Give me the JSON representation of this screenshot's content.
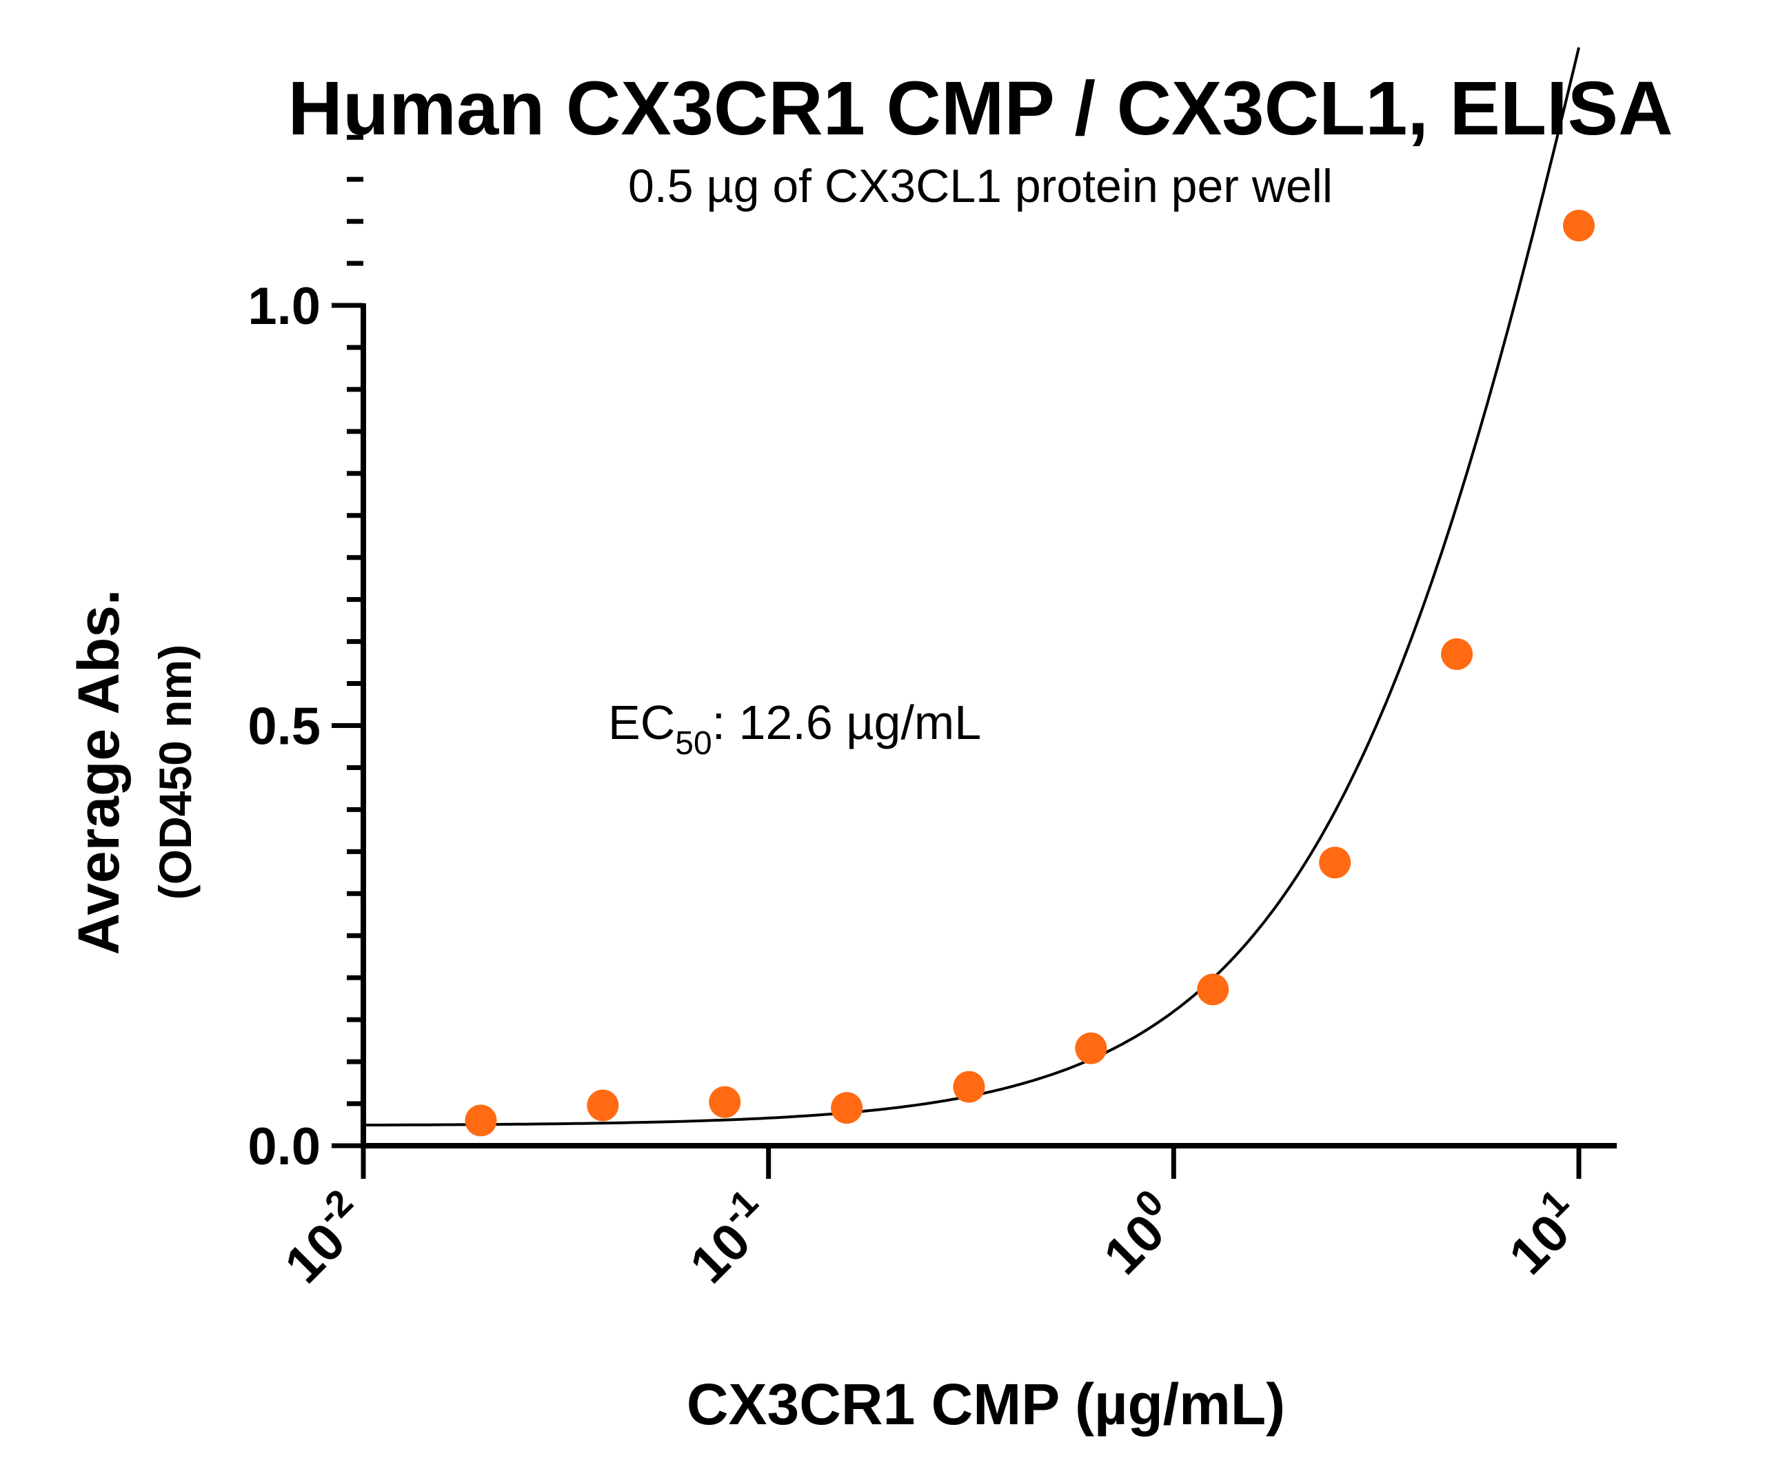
{
  "chart_data": {
    "type": "scatter",
    "title": "Human CX3CR1 CMP / CX3CL1, ELISA",
    "subtitle": "0.5 µg of CX3CL1 protein per well",
    "xlabel": "CX3CR1 CMP (µg/mL)",
    "ylabel": "Average Abs.",
    "ylabel_sub": "(OD450 nm)",
    "x_scale": "log",
    "xlim": [
      0.01,
      10
    ],
    "ylim": [
      0,
      1.2
    ],
    "x_ticks": [
      {
        "value": 0.01,
        "base": "10",
        "exp": "-2"
      },
      {
        "value": 0.1,
        "base": "10",
        "exp": "-1"
      },
      {
        "value": 1,
        "base": "10",
        "exp": "0"
      },
      {
        "value": 10,
        "base": "10",
        "exp": "1"
      }
    ],
    "y_ticks": [
      {
        "value": 0.0,
        "label": "0.0"
      },
      {
        "value": 0.5,
        "label": "0.5"
      },
      {
        "value": 1.0,
        "label": "1.0"
      }
    ],
    "y_minor_step": 0.05,
    "grid": false,
    "annotation": {
      "prefix": "EC",
      "subscript": "50",
      "suffix": ": 12.6 µg/mL"
    },
    "marker_color": "#FF6A13",
    "line_color": "#000000",
    "series": [
      {
        "x": [
          0.0195,
          0.039,
          0.078,
          0.156,
          0.3125,
          0.625,
          1.25,
          2.5,
          5.0,
          10.0
        ],
        "y": [
          0.03,
          0.048,
          0.052,
          0.045,
          0.07,
          0.116,
          0.186,
          0.337,
          0.585,
          1.095
        ]
      }
    ],
    "fit": {
      "type": "4PL",
      "bottom": 0.024,
      "top": 3.0,
      "ec50": 12.6,
      "hill": 1.2
    }
  }
}
